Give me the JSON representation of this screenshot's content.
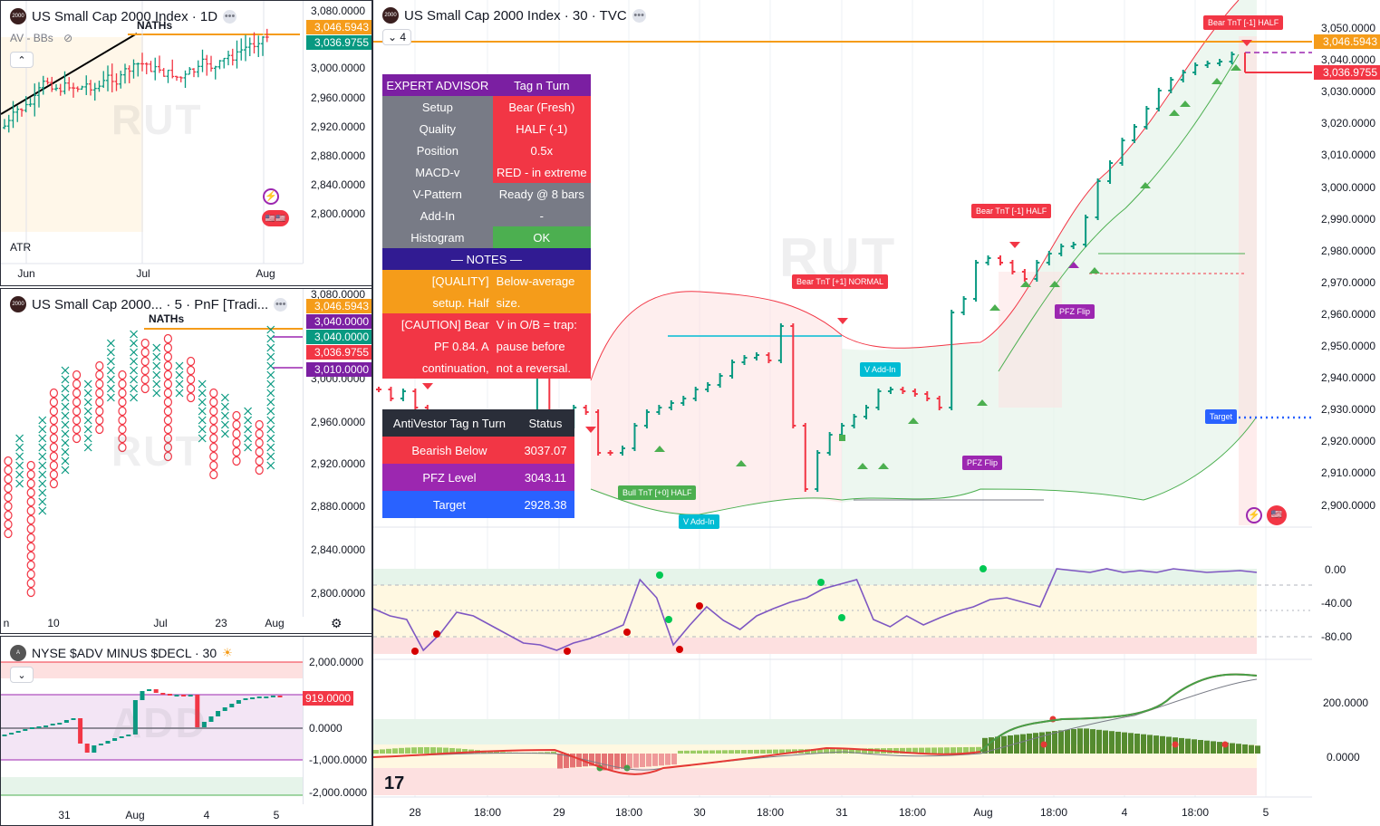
{
  "colors": {
    "accent": "#f59c1a",
    "bear": "#f23645",
    "bull": "#089981",
    "purple": "#7b1fa2",
    "blue": "#2962ff",
    "gray": "#787b86"
  },
  "panes": {
    "daily": {
      "title": "US Small Cap 2000 Index · 1D",
      "indicator_label": "AV - BBs",
      "lower_label": "ATR",
      "watermark": "RUT",
      "annotation": "NATHs",
      "y_labels": [
        "3,080.0000",
        "3,000.0000",
        "2,960.0000",
        "2,920.0000",
        "2,880.0000",
        "2,840.0000",
        "2,800.0000"
      ],
      "tag_high": "3,046.5943",
      "tag_close": "3,036.9755",
      "x_labels": [
        "Jun",
        "Jul",
        "Aug"
      ]
    },
    "pnf": {
      "title": "US Small Cap 2000... · 5 · PnF [Tradi...",
      "watermark": "RUT",
      "annotation": "NATHs",
      "y_labels": [
        "3,080.0000",
        "3,000.0000",
        "2,960.0000",
        "2,920.0000",
        "2,880.0000",
        "2,840.0000",
        "2,800.0000"
      ],
      "tags": [
        "3,046.5943",
        "3,040.0000",
        "3,040.0000",
        "3,036.9755",
        "3,010.0000"
      ],
      "x_labels": [
        "n",
        "10",
        "Jul",
        "23",
        "Aug"
      ]
    },
    "add": {
      "title": "NYSE $ADV MINUS $DECL · 30",
      "watermark": "ADD",
      "y_labels": [
        "2,000.0000",
        "0.0000",
        "-1,000.0000",
        "-2,000.0000"
      ],
      "tag": "919.0000",
      "x_labels": [
        "31",
        "Aug",
        "4",
        "5"
      ]
    },
    "main": {
      "title": "US Small Cap 2000 Index · 30 · TVC",
      "collapse_count": "4",
      "watermark": "RUT",
      "y_labels": [
        "3,050.0000",
        "3,040.0000",
        "3,030.0000",
        "3,020.0000",
        "3,010.0000",
        "3,000.0000",
        "2,990.0000",
        "2,980.0000",
        "2,970.0000",
        "2,960.0000",
        "2,950.0000",
        "2,940.0000",
        "2,930.0000",
        "2,920.0000",
        "2,910.0000",
        "2,900.0000"
      ],
      "tag_high": "3,046.5943",
      "tag_close": "3,036.9755",
      "osc_labels": [
        "0.00",
        "-40.00",
        "-80.00"
      ],
      "hist_labels": [
        "200.0000",
        "0.0000"
      ],
      "x_labels": [
        "28",
        "18:00",
        "29",
        "18:00",
        "30",
        "18:00",
        "31",
        "18:00",
        "Aug",
        "18:00",
        "4",
        "18:00",
        "5"
      ],
      "markers": {
        "bear_half_top": "Bear TnT [-1] HALF",
        "bear_half_mid": "Bear TnT [-1] HALF",
        "bear_normal": "Bear TnT [+1] NORMAL",
        "pfz_flip_1": "PFZ Flip",
        "pfz_flip_2": "PFZ Flip",
        "v_addin_1": "V Add-In",
        "v_addin_2": "V Add-In",
        "bull_half": "Bull TnT [+0] HALF",
        "target": "Target"
      }
    }
  },
  "expert_advisor": {
    "header": [
      "EXPERT ADVISOR",
      "Tag n Turn"
    ],
    "rows": [
      {
        "label": "Setup",
        "value": "Bear (Fresh)",
        "color": "#f23645"
      },
      {
        "label": "Quality",
        "value": "HALF (-1)",
        "color": "#f23645"
      },
      {
        "label": "Position",
        "value": "0.5x",
        "color": "#f23645"
      },
      {
        "label": "MACD-v",
        "value": "RED - in extreme",
        "color": "#f23645"
      },
      {
        "label": "V-Pattern",
        "value": "Ready @ 8 bars",
        "color": "#787b86"
      },
      {
        "label": "Add-In",
        "value": "-",
        "color": "#787b86"
      },
      {
        "label": "Histogram",
        "value": "OK",
        "color": "#4caf50"
      }
    ],
    "notes_header": "— NOTES —",
    "notes": [
      {
        "left": "[QUALITY]",
        "right": "Below-average",
        "color": "#f59c1a"
      },
      {
        "left": "setup. Half",
        "right": "size.",
        "color": "#f59c1a"
      },
      {
        "left": "[CAUTION] Bear",
        "right": "V in O/B = trap:",
        "color": "#f23645"
      },
      {
        "left": "PF 0.84. A",
        "right": "pause before",
        "color": "#f23645"
      },
      {
        "left": "continuation,",
        "right": "not a reversal.",
        "color": "#f23645"
      }
    ]
  },
  "antivestor": {
    "header": [
      "AntiVestor Tag n Turn",
      "Status"
    ],
    "rows": [
      {
        "label": "Bearish Below",
        "value": "3037.07",
        "color": "#f23645"
      },
      {
        "label": "PFZ Level",
        "value": "3043.11",
        "color": "#9c27b0"
      },
      {
        "label": "Target",
        "value": "2928.38",
        "color": "#2962ff"
      }
    ]
  }
}
